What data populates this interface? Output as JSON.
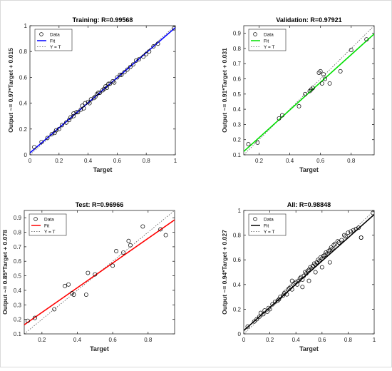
{
  "chart_data": [
    {
      "type": "scatter",
      "title": "Training: R=0.99568",
      "xlabel": "Target",
      "ylabel": "Output ~= 0.97*Target + 0.015",
      "xlim": [
        0,
        1
      ],
      "ylim": [
        0,
        1
      ],
      "xticks": [
        0,
        0.2,
        0.4,
        0.6,
        0.8,
        1
      ],
      "yticks": [
        0,
        0.2,
        0.4,
        0.6,
        0.8,
        1
      ],
      "tick_labels_x": [
        "0",
        "0.2",
        "0.4",
        "0.6",
        "0.8",
        "1"
      ],
      "tick_labels_y": [
        "0",
        "0.2",
        "0.4",
        "0.6",
        "0.8",
        "1"
      ],
      "fit": {
        "slope": 0.97,
        "intercept": 0.015,
        "color": "#0000ff"
      },
      "legend": {
        "position": "top-left",
        "entries": [
          "Data",
          "Fit",
          "Y = T"
        ]
      },
      "series": [
        {
          "name": "Data",
          "x": [
            0.03,
            0.08,
            0.12,
            0.15,
            0.17,
            0.18,
            0.2,
            0.22,
            0.25,
            0.27,
            0.28,
            0.3,
            0.3,
            0.32,
            0.33,
            0.35,
            0.36,
            0.37,
            0.38,
            0.4,
            0.41,
            0.42,
            0.44,
            0.45,
            0.46,
            0.47,
            0.48,
            0.5,
            0.51,
            0.52,
            0.53,
            0.54,
            0.55,
            0.57,
            0.58,
            0.6,
            0.62,
            0.63,
            0.65,
            0.67,
            0.69,
            0.71,
            0.73,
            0.75,
            0.78,
            0.8,
            0.82,
            0.85,
            0.88,
            0.99
          ],
          "y": [
            0.06,
            0.1,
            0.13,
            0.16,
            0.17,
            0.19,
            0.2,
            0.23,
            0.25,
            0.27,
            0.29,
            0.3,
            0.32,
            0.33,
            0.33,
            0.35,
            0.38,
            0.36,
            0.4,
            0.41,
            0.4,
            0.43,
            0.44,
            0.45,
            0.47,
            0.48,
            0.48,
            0.5,
            0.51,
            0.53,
            0.52,
            0.55,
            0.55,
            0.57,
            0.56,
            0.6,
            0.62,
            0.62,
            0.64,
            0.66,
            0.68,
            0.7,
            0.73,
            0.74,
            0.76,
            0.78,
            0.8,
            0.84,
            0.86,
            0.98
          ]
        }
      ]
    },
    {
      "type": "scatter",
      "title": "Validation: R=0.97921",
      "xlabel": "Target",
      "ylabel": "Output ~= 0.91*Target + 0.031",
      "xlim": [
        0.1,
        0.95
      ],
      "ylim": [
        0.1,
        0.95
      ],
      "xticks": [
        0.2,
        0.4,
        0.6,
        0.8
      ],
      "yticks": [
        0.1,
        0.2,
        0.3,
        0.4,
        0.5,
        0.6,
        0.7,
        0.8,
        0.9
      ],
      "tick_labels_x": [
        "0.2",
        "0.4",
        "0.6",
        "0.8"
      ],
      "tick_labels_y": [
        "0.1",
        "0.2",
        "0.3",
        "0.4",
        "0.5",
        "0.6",
        "0.7",
        "0.8",
        "0.9"
      ],
      "fit": {
        "slope": 0.91,
        "intercept": 0.031,
        "color": "#00e000"
      },
      "legend": {
        "position": "top-left",
        "entries": [
          "Data",
          "Fit",
          "Y = T"
        ]
      },
      "series": [
        {
          "name": "Data",
          "x": [
            0.13,
            0.19,
            0.33,
            0.35,
            0.46,
            0.5,
            0.53,
            0.54,
            0.55,
            0.59,
            0.6,
            0.61,
            0.62,
            0.63,
            0.66,
            0.73,
            0.8,
            0.9
          ],
          "y": [
            0.17,
            0.18,
            0.34,
            0.36,
            0.42,
            0.5,
            0.52,
            0.53,
            0.54,
            0.64,
            0.65,
            0.57,
            0.63,
            0.6,
            0.57,
            0.65,
            0.79,
            0.86
          ]
        }
      ]
    },
    {
      "type": "scatter",
      "title": "Test: R=0.96966",
      "xlabel": "Target",
      "ylabel": "Output ~= 0.85*Target + 0.078",
      "xlim": [
        0.1,
        0.95
      ],
      "ylim": [
        0.1,
        0.95
      ],
      "xticks": [
        0.2,
        0.4,
        0.6,
        0.8
      ],
      "yticks": [
        0.1,
        0.2,
        0.3,
        0.4,
        0.5,
        0.6,
        0.7,
        0.8,
        0.9
      ],
      "tick_labels_x": [
        "0.2",
        "0.4",
        "0.6",
        "0.8"
      ],
      "tick_labels_y": [
        "0.1",
        "0.2",
        "0.3",
        "0.4",
        "0.5",
        "0.6",
        "0.7",
        "0.8",
        "0.9"
      ],
      "fit": {
        "slope": 0.85,
        "intercept": 0.078,
        "color": "#ff0000"
      },
      "legend": {
        "position": "top-left",
        "entries": [
          "Data",
          "Fit",
          "Y = T"
        ]
      },
      "series": [
        {
          "name": "Data",
          "x": [
            0.12,
            0.16,
            0.27,
            0.33,
            0.35,
            0.37,
            0.38,
            0.45,
            0.46,
            0.5,
            0.6,
            0.62,
            0.66,
            0.69,
            0.7,
            0.77,
            0.87,
            0.9
          ],
          "y": [
            0.19,
            0.21,
            0.27,
            0.43,
            0.44,
            0.38,
            0.37,
            0.37,
            0.52,
            0.51,
            0.57,
            0.67,
            0.66,
            0.74,
            0.71,
            0.84,
            0.82,
            0.78
          ]
        }
      ]
    },
    {
      "type": "scatter",
      "title": "All: R=0.98848",
      "xlabel": "Target",
      "ylabel": "Output ~= 0.94*Target + 0.027",
      "xlim": [
        0,
        1
      ],
      "ylim": [
        0,
        1
      ],
      "xticks": [
        0,
        0.2,
        0.4,
        0.6,
        0.8,
        1
      ],
      "yticks": [
        0,
        0.2,
        0.4,
        0.6,
        0.8,
        1
      ],
      "tick_labels_x": [
        "0",
        "0.2",
        "0.4",
        "0.6",
        "0.8",
        "1"
      ],
      "tick_labels_y": [
        "0",
        "0.2",
        "0.4",
        "0.6",
        "0.8",
        "1"
      ],
      "fit": {
        "slope": 0.94,
        "intercept": 0.027,
        "color": "#000000"
      },
      "legend": {
        "position": "top-left",
        "entries": [
          "Data",
          "Fit",
          "Y = T"
        ]
      },
      "series": [
        {
          "name": "Data",
          "x": [
            0.03,
            0.08,
            0.1,
            0.12,
            0.13,
            0.15,
            0.16,
            0.18,
            0.19,
            0.2,
            0.22,
            0.24,
            0.26,
            0.27,
            0.28,
            0.3,
            0.31,
            0.32,
            0.33,
            0.34,
            0.35,
            0.36,
            0.37,
            0.38,
            0.39,
            0.4,
            0.41,
            0.42,
            0.43,
            0.44,
            0.45,
            0.46,
            0.47,
            0.48,
            0.49,
            0.5,
            0.51,
            0.52,
            0.53,
            0.54,
            0.55,
            0.56,
            0.57,
            0.58,
            0.59,
            0.6,
            0.61,
            0.62,
            0.63,
            0.64,
            0.65,
            0.66,
            0.67,
            0.68,
            0.69,
            0.7,
            0.72,
            0.73,
            0.75,
            0.77,
            0.78,
            0.8,
            0.82,
            0.84,
            0.86,
            0.88,
            0.9,
            0.9,
            0.99,
            0.37,
            0.45,
            0.5,
            0.55,
            0.6,
            0.66
          ],
          "y": [
            0.06,
            0.1,
            0.12,
            0.14,
            0.17,
            0.16,
            0.19,
            0.18,
            0.21,
            0.2,
            0.24,
            0.26,
            0.27,
            0.28,
            0.3,
            0.31,
            0.33,
            0.34,
            0.32,
            0.36,
            0.37,
            0.38,
            0.43,
            0.4,
            0.41,
            0.42,
            0.4,
            0.43,
            0.45,
            0.46,
            0.44,
            0.47,
            0.5,
            0.49,
            0.51,
            0.52,
            0.54,
            0.53,
            0.55,
            0.57,
            0.56,
            0.58,
            0.6,
            0.59,
            0.62,
            0.61,
            0.63,
            0.64,
            0.66,
            0.65,
            0.67,
            0.68,
            0.7,
            0.69,
            0.72,
            0.73,
            0.75,
            0.74,
            0.76,
            0.8,
            0.79,
            0.82,
            0.83,
            0.84,
            0.85,
            0.86,
            0.78,
            0.78,
            0.98,
            0.36,
            0.38,
            0.43,
            0.5,
            0.54,
            0.58
          ]
        }
      ]
    }
  ]
}
